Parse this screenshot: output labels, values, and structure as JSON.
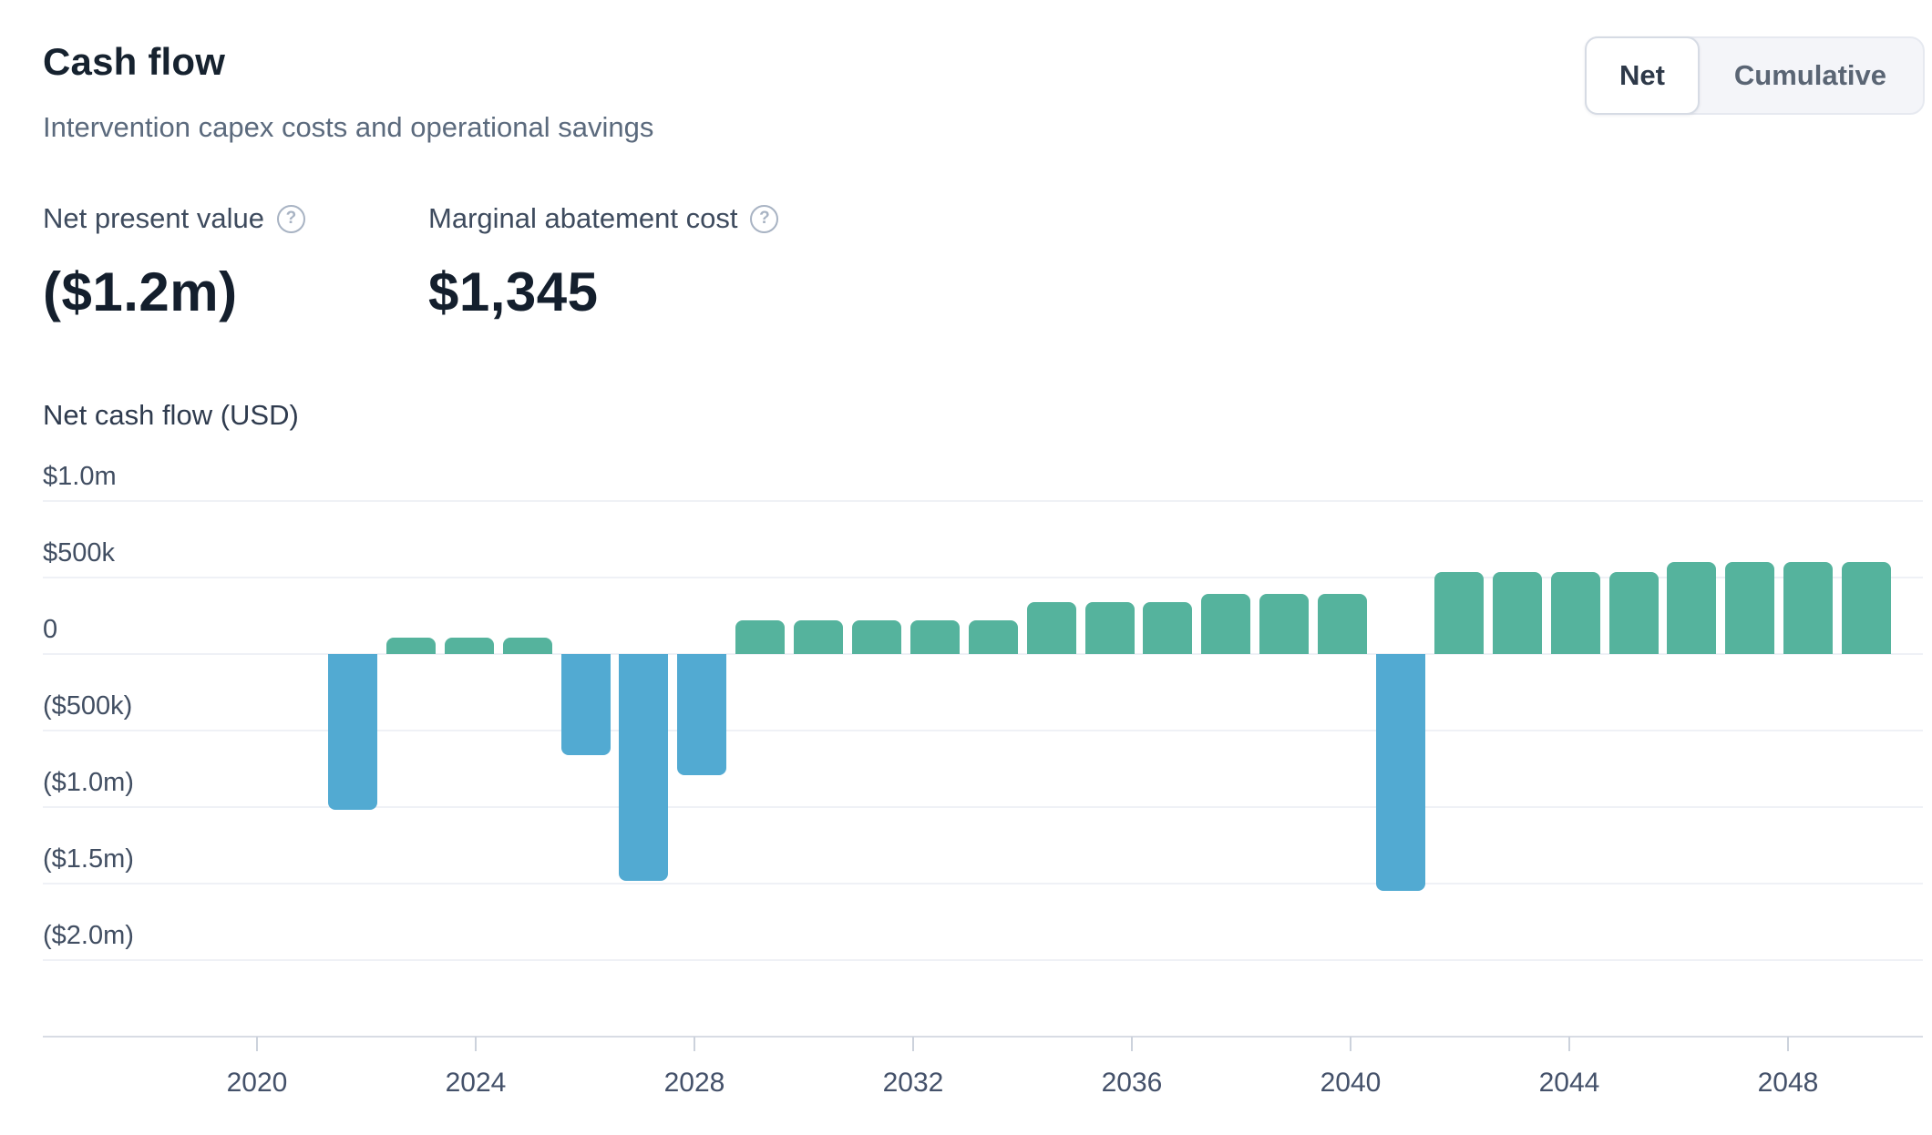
{
  "header": {
    "title": "Cash flow",
    "subtitle": "Intervention capex costs and operational savings"
  },
  "toggle": {
    "options": [
      "Net",
      "Cumulative"
    ],
    "selected": "Net"
  },
  "stats": [
    {
      "label": "Net present value",
      "value": "($1.2m)",
      "icon": "question-circle"
    },
    {
      "label": "Marginal abatement cost",
      "value": "$1,345",
      "icon": "question-circle"
    }
  ],
  "chart_data": {
    "type": "bar",
    "title": "Net cash flow (USD)",
    "unit": "USD thousands",
    "x": [
      2022,
      2023,
      2024,
      2025,
      2026,
      2027,
      2028,
      2029,
      2030,
      2031,
      2032,
      2033,
      2034,
      2035,
      2036,
      2037,
      2038,
      2039,
      2040,
      2041,
      2042,
      2043,
      2044,
      2045,
      2046,
      2047,
      2048
    ],
    "values_k": [
      -1020,
      110,
      110,
      110,
      -660,
      -1480,
      -790,
      220,
      220,
      220,
      220,
      220,
      340,
      340,
      340,
      390,
      390,
      390,
      -1550,
      535,
      535,
      535,
      535,
      600,
      600,
      600,
      600
    ],
    "y_tick_labels": [
      "$1.0m",
      "$500k",
      "0",
      "($500k)",
      "($1.0m)",
      "($1.5m)",
      "($2.0m)"
    ],
    "y_tick_values_k": [
      1000,
      500,
      0,
      -500,
      -1000,
      -1500,
      -2000
    ],
    "x_tick_labels": [
      "2020",
      "2024",
      "2028",
      "2032",
      "2036",
      "2040",
      "2044",
      "2048"
    ],
    "ylim_k": [
      -2500,
      1000
    ],
    "grid": "horizontal",
    "legend": "none",
    "positive_color": "#55b39d",
    "negative_color": "#52aad2"
  }
}
